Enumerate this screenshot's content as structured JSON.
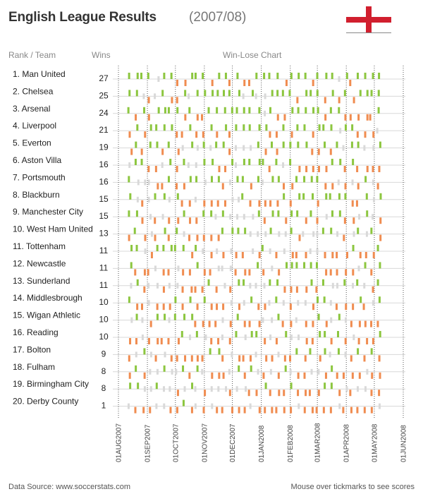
{
  "header": {
    "title": "English League Results",
    "season": "(2007/08)"
  },
  "columns": {
    "rank_team": "Rank / Team",
    "wins": "Wins",
    "chart": "Win-Lose Chart"
  },
  "footer": {
    "source": "Data Source: www.soccerstats.com",
    "hint": "Mouse over tickmarks to see scores"
  },
  "colors": {
    "win": "#8cc63f",
    "draw": "#d9d9d9",
    "loss": "#f08c50",
    "row_line": "#d8d8d8",
    "month_line": "#555555",
    "flag_red": "#d11f2e"
  },
  "chart_data": {
    "type": "table",
    "title": "English League Results (2007/08)",
    "x_axis": {
      "type": "date",
      "range": [
        "2007-08-01",
        "2008-06-01"
      ],
      "ticks": [
        "01AUG2007",
        "01SEP2007",
        "01OCT2007",
        "01NOV2007",
        "01DEC2007",
        "01JAN2008",
        "01FEB2008",
        "01MAR2008",
        "01APR2008",
        "01MAY2008",
        "01JUN2008"
      ]
    },
    "legend": [
      "win",
      "draw",
      "loss"
    ],
    "teams": [
      {
        "rank": "1.",
        "team": "Man United",
        "wins": 27
      },
      {
        "rank": "2.",
        "team": "Chelsea",
        "wins": 25
      },
      {
        "rank": "3.",
        "team": "Arsenal",
        "wins": 24
      },
      {
        "rank": "4.",
        "team": "Liverpool",
        "wins": 21
      },
      {
        "rank": "5.",
        "team": "Everton",
        "wins": 19
      },
      {
        "rank": "6.",
        "team": "Aston Villa",
        "wins": 16
      },
      {
        "rank": "7.",
        "team": "Portsmouth",
        "wins": 16
      },
      {
        "rank": "8.",
        "team": "Blackburn",
        "wins": 15
      },
      {
        "rank": "9.",
        "team": "Manchester City",
        "wins": 15
      },
      {
        "rank": "10.",
        "team": "West Ham United",
        "wins": 13
      },
      {
        "rank": "11.",
        "team": "Tottenham",
        "wins": 11
      },
      {
        "rank": "12.",
        "team": "Newcastle",
        "wins": 11
      },
      {
        "rank": "13.",
        "team": "Sunderland",
        "wins": 11
      },
      {
        "rank": "14.",
        "team": "Middlesbrough",
        "wins": 10
      },
      {
        "rank": "15.",
        "team": "Wigan Athletic",
        "wins": 10
      },
      {
        "rank": "16.",
        "team": "Reading",
        "wins": 10
      },
      {
        "rank": "17.",
        "team": "Bolton",
        "wins": 9
      },
      {
        "rank": "18.",
        "team": "Fulham",
        "wins": 8
      },
      {
        "rank": "19.",
        "team": "Birmingham City",
        "wins": 8
      },
      {
        "rank": "20.",
        "team": "Derby County",
        "wins": 1
      }
    ]
  }
}
